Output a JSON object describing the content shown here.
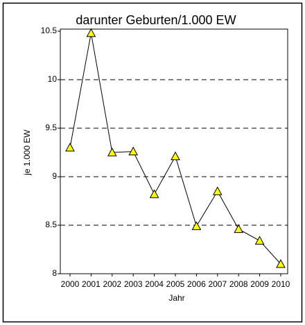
{
  "chart_data": {
    "type": "line",
    "title": "darunter Geburten/1.000 EW",
    "xlabel": "Jahr",
    "ylabel": "je 1.000 EW",
    "categories": [
      "2000",
      "2001",
      "2002",
      "2003",
      "2004",
      "2005",
      "2006",
      "2007",
      "2008",
      "2009",
      "2010"
    ],
    "series": [
      {
        "name": "Geburten",
        "color": "#000000",
        "marker_color": "#ffff00",
        "values": [
          9.3,
          10.48,
          9.25,
          9.26,
          8.82,
          9.21,
          8.49,
          8.85,
          8.46,
          8.34,
          8.1
        ]
      }
    ],
    "ylim": [
      8,
      10.5
    ],
    "yticks": [
      8,
      8.5,
      9,
      9.5,
      10,
      10.5
    ],
    "grid": true
  }
}
